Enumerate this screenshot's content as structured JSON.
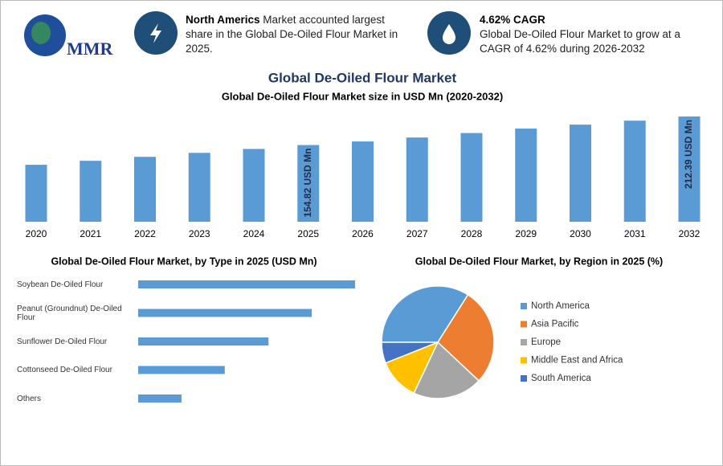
{
  "header": {
    "logo": "MMR",
    "info": [
      {
        "bold": "North Americs",
        "text": "Market accounted largest share in the Global De-Oiled Flour Market in 2025."
      },
      {
        "bold": "4.62% CAGR",
        "text": "Global De-Oiled Flour Market to grow at a CAGR of 4.62% during 2026-2032"
      }
    ],
    "title": "Global De-Oiled Flour Market"
  },
  "chart_data": [
    {
      "type": "bar",
      "title": "Global De-Oiled Flour Market size in USD Mn (2020-2032)",
      "categories": [
        "2020",
        "2021",
        "2022",
        "2023",
        "2024",
        "2025",
        "2026",
        "2027",
        "2028",
        "2029",
        "2030",
        "2031",
        "2032"
      ],
      "values": [
        115,
        123,
        131,
        139,
        147,
        154.82,
        162,
        170,
        179,
        188,
        196,
        204,
        212.39
      ],
      "value_labels": [
        null,
        null,
        null,
        null,
        null,
        "154.82 USD Mn",
        null,
        null,
        null,
        null,
        null,
        null,
        "212.39 USD Mn"
      ],
      "color": "#5b9bd5"
    },
    {
      "type": "hbar",
      "title": "Global De-Oiled Flour Market, by Type in 2025 (USD Mn)",
      "categories": [
        "Soybean De-Oiled Flour",
        "Peanut (Groundnut) De-Oiled Flour",
        "Sunflower De-Oiled Flour",
        "Cottonseed De-Oiled Flour",
        "Others"
      ],
      "values": [
        51.6,
        41.3,
        31.0,
        20.6,
        10.3
      ],
      "color": "#5b9bd5"
    },
    {
      "type": "pie",
      "title": "Global De-Oiled Flour Market, by Region in 2025 (%)",
      "categories": [
        "North America",
        "Asia Pacific",
        "Europe",
        "Middle East and Africa",
        "South America"
      ],
      "values": [
        34,
        28,
        20,
        12,
        6
      ],
      "colors": [
        "#5b9bd5",
        "#ed7d31",
        "#a5a5a5",
        "#ffc000",
        "#4472c4"
      ]
    }
  ]
}
